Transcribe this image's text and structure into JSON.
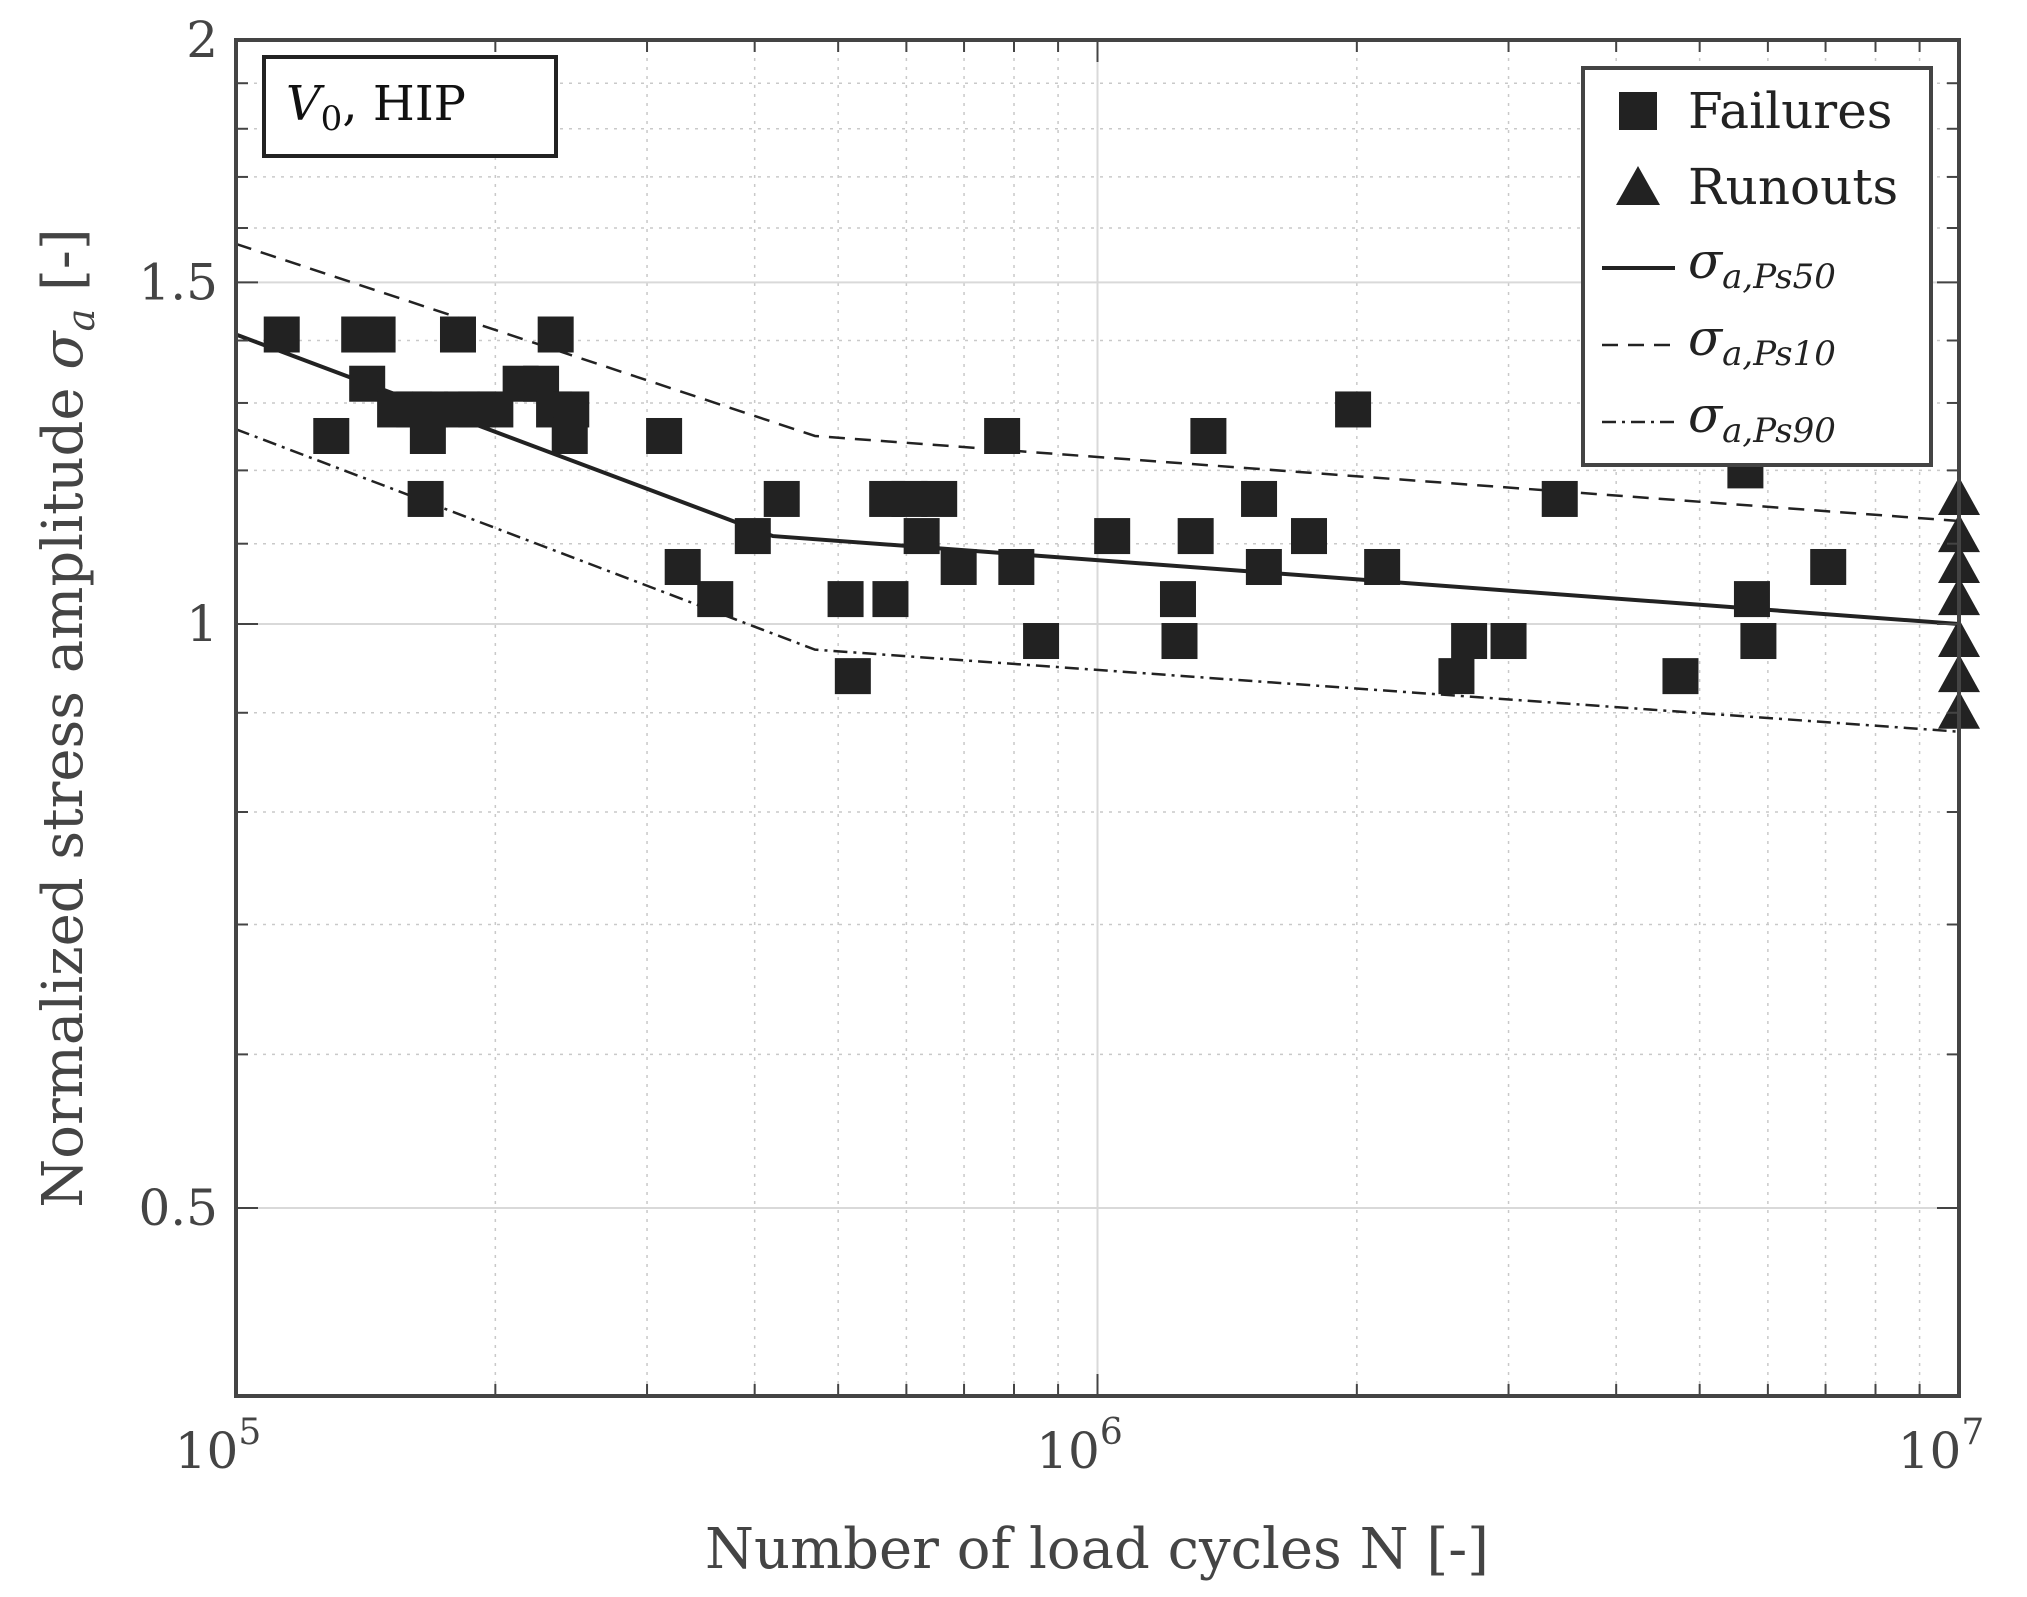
{
  "chart_data": {
    "type": "scatter",
    "title": "",
    "xlabel": "Number of load cycles N [-]",
    "ylabel": "Normalized stress amplitude",
    "ylabel_symbol": "σ",
    "ylabel_symbol_sub": "a",
    "ylabel_unit": "[-]",
    "xscale": "log",
    "yscale": "log",
    "xlim": [
      100000,
      10000000
    ],
    "ylim": [
      0.4,
      2.0
    ],
    "grid": true,
    "x_ticks": [
      {
        "value": 100000,
        "base": "10",
        "exp": "5"
      },
      {
        "value": 1000000,
        "base": "10",
        "exp": "6"
      },
      {
        "value": 10000000,
        "base": "10",
        "exp": "7"
      }
    ],
    "y_ticks": [
      {
        "value": 0.5,
        "label": "0.5"
      },
      {
        "value": 1.0,
        "label": "1"
      },
      {
        "value": 1.5,
        "label": "1.5"
      },
      {
        "value": 2.0,
        "label": "2"
      }
    ],
    "annotation": {
      "symbol": "V",
      "sub": "0",
      "text": ", HIP"
    },
    "legend_position": "top-right",
    "legend": [
      {
        "marker": "square",
        "label": "Failures"
      },
      {
        "marker": "triangle",
        "label": "Runouts"
      },
      {
        "line": "solid",
        "symbol": "σ",
        "sub": "a,Ps50"
      },
      {
        "line": "dashed",
        "symbol": "σ",
        "sub": "a,Ps10"
      },
      {
        "line": "dashdot",
        "symbol": "σ",
        "sub": "a,Ps90"
      }
    ],
    "series": [
      {
        "name": "Failures",
        "marker": "square",
        "points": [
          [
            113000,
            1.41
          ],
          [
            129000,
            1.25
          ],
          [
            139000,
            1.41
          ],
          [
            146000,
            1.41
          ],
          [
            142000,
            1.33
          ],
          [
            153000,
            1.29
          ],
          [
            161000,
            1.29
          ],
          [
            168000,
            1.29
          ],
          [
            167000,
            1.25
          ],
          [
            166000,
            1.16
          ],
          [
            181000,
            1.41
          ],
          [
            183000,
            1.29
          ],
          [
            190000,
            1.29
          ],
          [
            200000,
            1.29
          ],
          [
            214000,
            1.33
          ],
          [
            226000,
            1.33
          ],
          [
            234000,
            1.29
          ],
          [
            235000,
            1.41
          ],
          [
            245000,
            1.29
          ],
          [
            244000,
            1.25
          ],
          [
            314000,
            1.25
          ],
          [
            330000,
            1.07
          ],
          [
            360000,
            1.03
          ],
          [
            398000,
            1.11
          ],
          [
            430000,
            1.16
          ],
          [
            510000,
            1.03
          ],
          [
            520000,
            0.94
          ],
          [
            570000,
            1.16
          ],
          [
            575000,
            1.03
          ],
          [
            605000,
            1.16
          ],
          [
            625000,
            1.11
          ],
          [
            655000,
            1.16
          ],
          [
            690000,
            1.07
          ],
          [
            775000,
            1.25
          ],
          [
            805000,
            1.07
          ],
          [
            860000,
            0.98
          ],
          [
            1040000,
            1.11
          ],
          [
            1240000,
            1.03
          ],
          [
            1245000,
            0.98
          ],
          [
            1300000,
            1.11
          ],
          [
            1345000,
            1.25
          ],
          [
            1540000,
            1.16
          ],
          [
            1560000,
            1.07
          ],
          [
            1760000,
            1.11
          ],
          [
            1980000,
            1.29
          ],
          [
            2140000,
            1.07
          ],
          [
            2610000,
            0.94
          ],
          [
            2700000,
            0.98
          ],
          [
            3000000,
            0.98
          ],
          [
            3440000,
            1.16
          ],
          [
            4750000,
            0.94
          ],
          [
            5650000,
            1.2
          ],
          [
            5750000,
            1.03
          ],
          [
            5850000,
            0.98
          ],
          [
            7050000,
            1.07
          ]
        ]
      },
      {
        "name": "Runouts",
        "marker": "triangle",
        "points": [
          [
            10000000,
            1.16
          ],
          [
            10000000,
            1.11
          ],
          [
            10000000,
            1.07
          ],
          [
            10000000,
            1.03
          ],
          [
            10000000,
            0.98
          ],
          [
            10000000,
            0.94
          ],
          [
            10000000,
            0.9
          ]
        ]
      },
      {
        "name": "σa,Ps50",
        "line": "solid",
        "points": [
          [
            100000,
            1.41
          ],
          [
            420000,
            1.11
          ],
          [
            10000000,
            1.0
          ]
        ]
      },
      {
        "name": "σa,Ps10",
        "line": "dashed",
        "points": [
          [
            100000,
            1.57
          ],
          [
            470000,
            1.25
          ],
          [
            10000000,
            1.13
          ]
        ]
      },
      {
        "name": "σa,Ps90",
        "line": "dashdot",
        "points": [
          [
            100000,
            1.26
          ],
          [
            470000,
            0.97
          ],
          [
            10000000,
            0.88
          ]
        ]
      }
    ]
  }
}
